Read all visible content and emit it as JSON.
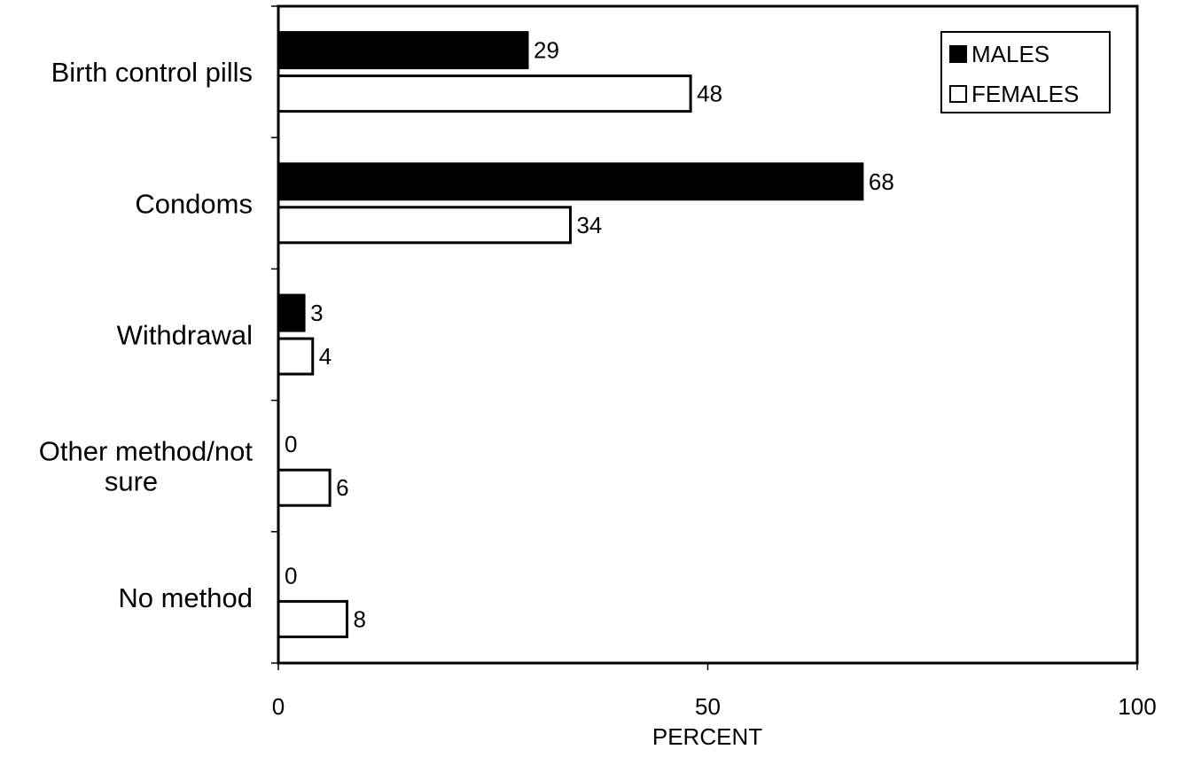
{
  "chart_data": {
    "type": "bar",
    "orientation": "horizontal",
    "categories": [
      [
        "Birth control pills"
      ],
      [
        "Condoms"
      ],
      [
        "Withdrawal"
      ],
      [
        "Other method/not",
        "sure"
      ],
      [
        "No method"
      ]
    ],
    "series": [
      {
        "name": "MALES",
        "values": [
          29,
          68,
          3,
          0,
          0
        ],
        "fill": "#000000"
      },
      {
        "name": "FEMALES",
        "values": [
          48,
          34,
          4,
          6,
          8
        ],
        "fill": "#ffffff"
      }
    ],
    "xlabel": "PERCENT",
    "ylabel": "",
    "xlim": [
      0,
      100
    ],
    "xticks": [
      0,
      50,
      100
    ],
    "grid": false,
    "legend_position": "top-right"
  }
}
